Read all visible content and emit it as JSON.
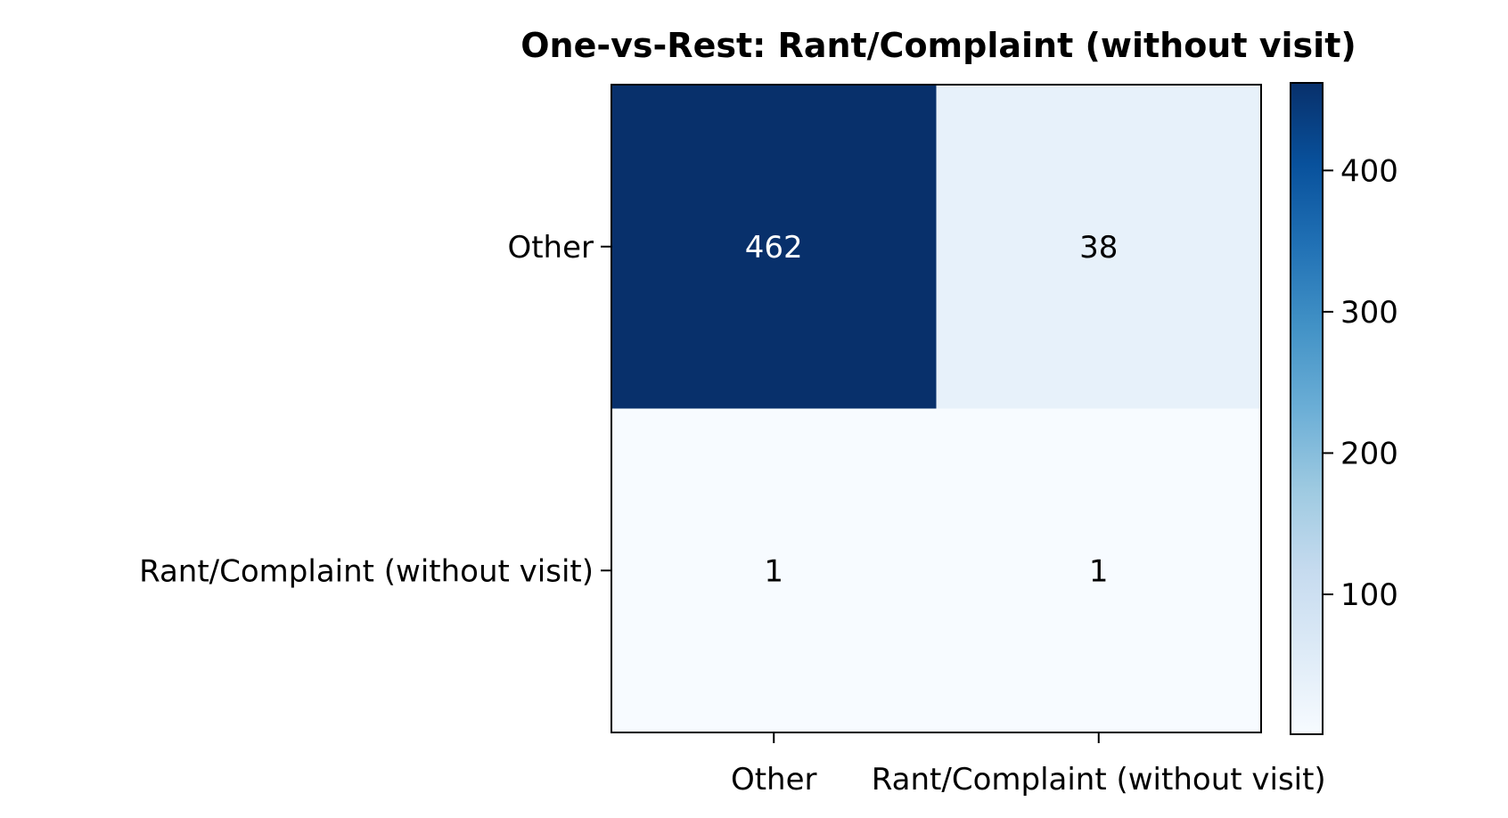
{
  "chart_data": {
    "type": "heatmap",
    "title": "One-vs-Rest: Rant/Complaint (without visit)",
    "row_labels": [
      "Other",
      "Rant/Complaint (without visit)"
    ],
    "col_labels": [
      "Other",
      "Rant/Complaint (without visit)"
    ],
    "values": [
      [
        462,
        38
      ],
      [
        1,
        1
      ]
    ],
    "colormap": "Blues",
    "colorbar": {
      "ticks": [
        100,
        200,
        300,
        400
      ],
      "range": [
        1,
        462
      ]
    },
    "xlabel": "",
    "ylabel": "",
    "legend": "colorbar-right",
    "grid": false
  }
}
